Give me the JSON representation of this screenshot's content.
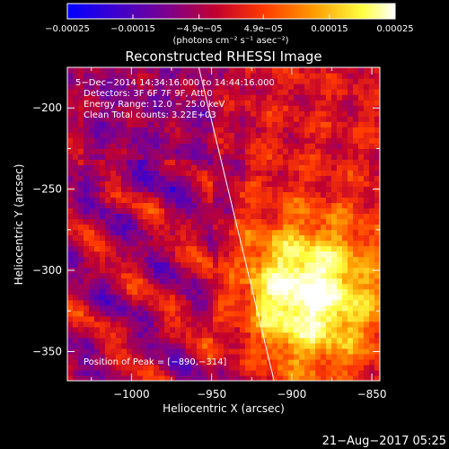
{
  "chart_data": {
    "type": "heatmap",
    "title": "Reconstructed RHESSI Image",
    "xlabel": "Heliocentric X (arcsec)",
    "ylabel": "Heliocentric Y (arcsec)",
    "xlim": [
      -1040,
      -845
    ],
    "ylim": [
      -368,
      -175
    ],
    "x_ticks": [
      -1000,
      -950,
      -900,
      -850
    ],
    "x_tick_labels": [
      "−1000",
      "−950",
      "−900",
      "−850"
    ],
    "y_ticks": [
      -200,
      -250,
      -300,
      -350
    ],
    "y_tick_labels": [
      "−200",
      "−250",
      "−300",
      "−350"
    ],
    "colorbar": {
      "min": -0.00025,
      "max": 0.00025,
      "tick_labels": [
        "−0.00025",
        "−0.00015",
        "−4.9e−05",
        "4.9e−05",
        "0.00015",
        "0.00025"
      ],
      "tick_values": [
        -0.00025,
        -0.00015,
        -4.9e-05,
        4.9e-05,
        0.00015,
        0.00025
      ],
      "units_label": "(photons cm⁻² s⁻¹ asec⁻²)",
      "colormap": [
        "#0000ff",
        "#3a00d0",
        "#7a0090",
        "#c00030",
        "#ff3a00",
        "#ff9a00",
        "#ffff40",
        "#ffffff"
      ]
    },
    "annotations": {
      "time": "5−Dec−2014 14:34:16.000 to 14:44:16.000",
      "detectors": "Detectors: 3F 6F 7F 9F, Att 0",
      "energy": "Energy Range: 12.0 − 25.0 keV",
      "clean": "Clean     Total counts: 3.22E+03",
      "peak": "Position of Peak = [−890,−314]"
    },
    "peak": {
      "x": -890,
      "y": -314
    },
    "limb_line": {
      "x1": -958,
      "y1": -175,
      "x2": -911,
      "y2": -368
    },
    "footer_date": "21−Aug−2017 05:25"
  }
}
